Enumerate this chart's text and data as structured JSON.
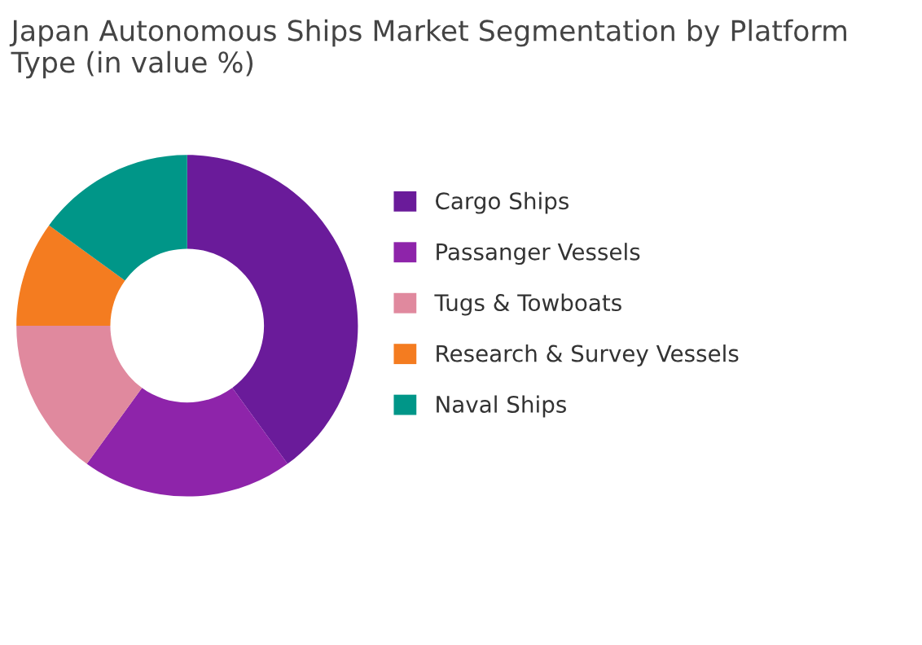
{
  "chart_data": {
    "type": "donut",
    "title": "Japan Autonomous Ships Market Segmentation by Platform Type (in value %)",
    "categories": [
      "Cargo Ships",
      "Passanger Vessels",
      "Tugs & Towboats",
      "Research & Survey Vessels",
      "Naval Ships"
    ],
    "values": [
      40,
      20,
      15,
      10,
      15
    ],
    "colors": [
      "#6a1b9a",
      "#8e24aa",
      "#e0899e",
      "#f47c20",
      "#009688"
    ],
    "legend": "right"
  }
}
